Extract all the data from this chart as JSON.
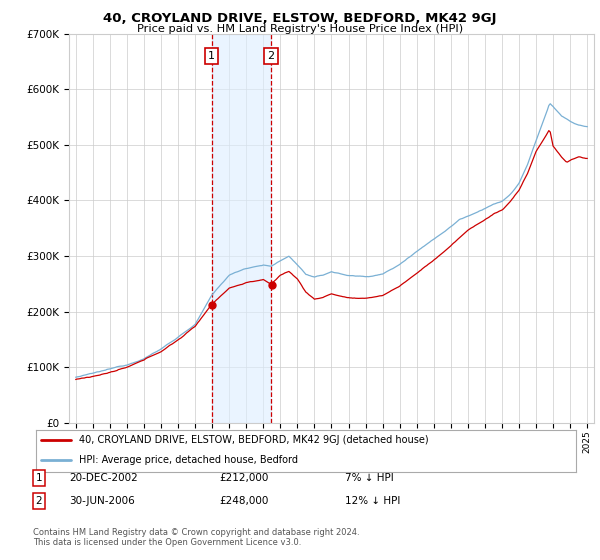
{
  "title": "40, CROYLAND DRIVE, ELSTOW, BEDFORD, MK42 9GJ",
  "subtitle": "Price paid vs. HM Land Registry's House Price Index (HPI)",
  "ylim": [
    0,
    700000
  ],
  "yticks": [
    0,
    100000,
    200000,
    300000,
    400000,
    500000,
    600000,
    700000
  ],
  "ytick_labels": [
    "£0",
    "£100K",
    "£200K",
    "£300K",
    "£400K",
    "£500K",
    "£600K",
    "£700K"
  ],
  "legend_line1": "40, CROYLAND DRIVE, ELSTOW, BEDFORD, MK42 9GJ (detached house)",
  "legend_line2": "HPI: Average price, detached house, Bedford",
  "transaction1_date": "20-DEC-2002",
  "transaction1_price": "£212,000",
  "transaction1_hpi": "7% ↓ HPI",
  "transaction2_date": "30-JUN-2006",
  "transaction2_price": "£248,000",
  "transaction2_hpi": "12% ↓ HPI",
  "footnote": "Contains HM Land Registry data © Crown copyright and database right 2024.\nThis data is licensed under the Open Government Licence v3.0.",
  "red_color": "#cc0000",
  "blue_color": "#7ab0d4",
  "shade_color": "#ddeeff",
  "background_color": "#ffffff",
  "grid_color": "#cccccc",
  "t1_year": 2002.96,
  "t2_year": 2006.46,
  "t1_price": 212000,
  "t2_price": 248000
}
